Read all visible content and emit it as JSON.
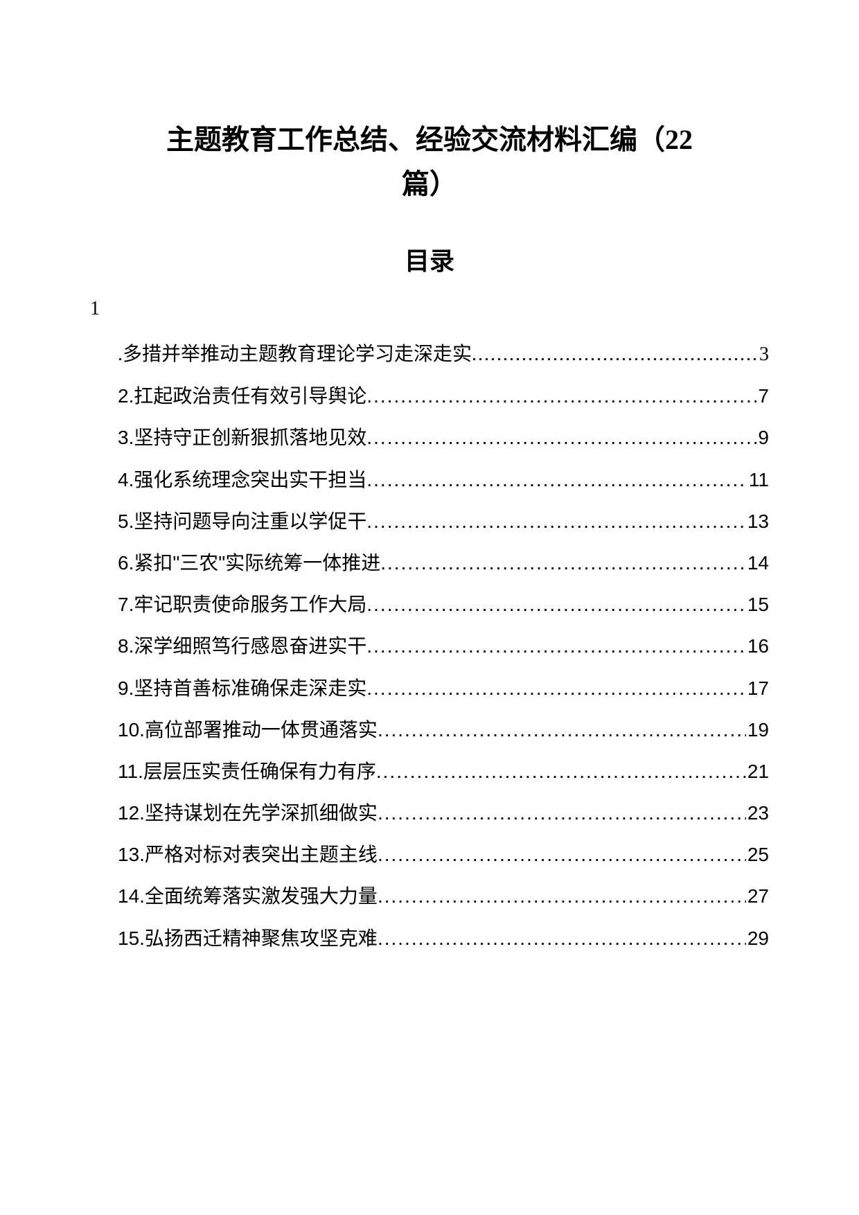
{
  "title_line1": "主题教育工作总结、经验交流材料汇编（22",
  "title_line2": "篇）",
  "toc_heading": "目录",
  "leading_number": "1",
  "entries": [
    {
      "title": ".多措并举推动主题教育理论学习走深走实",
      "page": "3",
      "first": true
    },
    {
      "title": "2.扛起政治责任有效引导舆论",
      "page": "7"
    },
    {
      "title": "3.坚持守正创新狠抓落地见效",
      "page": "9"
    },
    {
      "title": "4.强化系统理念突出实干担当",
      "page": "11"
    },
    {
      "title": "5.坚持问题导向注重以学促干",
      "page": "13"
    },
    {
      "title": "6.紧扣\"三农\"实际统筹一体推进",
      "page": "14"
    },
    {
      "title": "7.牢记职责使命服务工作大局",
      "page": "15"
    },
    {
      "title": "8.深学细照笃行感恩奋进实干",
      "page": "16"
    },
    {
      "title": "9.坚持首善标准确保走深走实",
      "page": "17"
    },
    {
      "title": "10.高位部署推动一体贯通落实",
      "page": "19"
    },
    {
      "title": "11.层层压实责任确保有力有序",
      "page": "21"
    },
    {
      "title": "12.坚持谋划在先学深抓细做实",
      "page": "23"
    },
    {
      "title": "13.严格对标对表突出主题主线",
      "page": "25"
    },
    {
      "title": "14.全面统筹落实激发强大力量",
      "page": "27"
    },
    {
      "title": "15.弘扬西迁精神聚焦攻坚克难",
      "page": "29"
    }
  ]
}
